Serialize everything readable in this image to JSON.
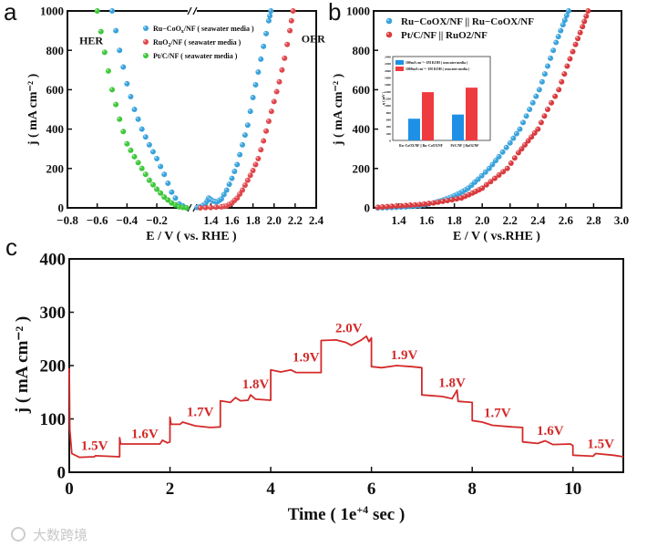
{
  "panels": {
    "a": "a",
    "b": "b",
    "c": "c"
  },
  "watermark": "大数跨境",
  "chart_data": [
    {
      "id": "a",
      "type": "scatter",
      "xlabel": "E / V ( vs. RHE )",
      "ylabel": "j ( mA cm⁻² )",
      "ylim": [
        0,
        1000
      ],
      "xlim_left": [
        -0.8,
        0.02
      ],
      "xlim_right": [
        1.25,
        2.4
      ],
      "axis_break": true,
      "xticks": [
        -0.8,
        -0.6,
        -0.4,
        -0.2,
        1.4,
        1.6,
        1.8,
        2.0,
        2.2,
        2.4
      ],
      "xtick_labels": [
        "−0.8",
        "−0.6",
        "−0.4",
        "−0.2",
        "1.4",
        "1.6",
        "1.8",
        "2.0",
        "2.2",
        "2.4"
      ],
      "yticks": [
        0,
        200,
        400,
        600,
        800,
        1000
      ],
      "annotations": [
        {
          "text": "HER",
          "x": -0.72,
          "y": 830
        },
        {
          "text": "OER",
          "x": 2.26,
          "y": 840
        }
      ],
      "legend_position": "top-center",
      "series": [
        {
          "name": "Ru−CoOx/NF ( seawater media )",
          "name_main": "Ru−CoO",
          "name_sub": "x",
          "name_rest": "/NF ( seawater media )",
          "color": "#3aa3dc",
          "points": [
            [
              0,
              0
            ],
            [
              -0.05,
              20
            ],
            [
              -0.1,
              80
            ],
            [
              -0.15,
              170
            ],
            [
              -0.2,
              250
            ],
            [
              -0.25,
              320
            ],
            [
              -0.3,
              400
            ],
            [
              -0.35,
              500
            ],
            [
              -0.4,
              630
            ],
            [
              -0.45,
              800
            ],
            [
              -0.5,
              1000
            ],
            [
              1.27,
              2
            ],
            [
              1.3,
              5
            ],
            [
              1.35,
              20
            ],
            [
              1.38,
              50
            ],
            [
              1.42,
              35
            ],
            [
              1.46,
              30
            ],
            [
              1.5,
              45
            ],
            [
              1.55,
              90
            ],
            [
              1.6,
              150
            ],
            [
              1.65,
              220
            ],
            [
              1.7,
              320
            ],
            [
              1.75,
              420
            ],
            [
              1.8,
              560
            ],
            [
              1.85,
              690
            ],
            [
              1.9,
              820
            ],
            [
              1.95,
              950
            ],
            [
              1.97,
              1000
            ]
          ]
        },
        {
          "name": "RuO2/NF ( seawater media )",
          "name_main": "RuO",
          "name_sub": "2",
          "name_rest": "/NF ( seawater media )",
          "color": "#e0474c",
          "points": [
            [
              1.3,
              0
            ],
            [
              1.4,
              2
            ],
            [
              1.5,
              5
            ],
            [
              1.55,
              10
            ],
            [
              1.6,
              25
            ],
            [
              1.65,
              50
            ],
            [
              1.7,
              90
            ],
            [
              1.75,
              140
            ],
            [
              1.8,
              190
            ],
            [
              1.85,
              250
            ],
            [
              1.9,
              340
            ],
            [
              1.95,
              440
            ],
            [
              2.0,
              540
            ],
            [
              2.05,
              640
            ],
            [
              2.1,
              760
            ],
            [
              2.15,
              900
            ],
            [
              2.18,
              1000
            ]
          ]
        },
        {
          "name": "Pt/C/NF ( seawater media )",
          "name_main": "Pt/C/NF ( seawater media )",
          "name_sub": "",
          "name_rest": "",
          "color": "#3ec83a",
          "points": [
            [
              0,
              0
            ],
            [
              -0.05,
              5
            ],
            [
              -0.1,
              25
            ],
            [
              -0.15,
              55
            ],
            [
              -0.2,
              95
            ],
            [
              -0.25,
              140
            ],
            [
              -0.3,
              200
            ],
            [
              -0.35,
              260
            ],
            [
              -0.4,
              325
            ],
            [
              -0.45,
              450
            ],
            [
              -0.5,
              600
            ],
            [
              -0.55,
              790
            ],
            [
              -0.6,
              1000
            ]
          ]
        }
      ]
    },
    {
      "id": "b",
      "type": "scatter",
      "xlabel": "E / V ( vs.RHE )",
      "ylabel": "j ( mA cm⁻² )",
      "xlim": [
        1.22,
        3.0
      ],
      "ylim": [
        0,
        1000
      ],
      "xticks": [
        1.4,
        1.6,
        1.8,
        2.0,
        2.2,
        2.4,
        2.6,
        2.8,
        3.0
      ],
      "yticks": [
        0,
        200,
        400,
        600,
        800,
        1000
      ],
      "legend_position": "top-left",
      "series": [
        {
          "name": "Ru−CoOX/NF || Ru−CoOX/NF",
          "color": "#3aa3dc",
          "points": [
            [
              1.25,
              0
            ],
            [
              1.35,
              2
            ],
            [
              1.45,
              5
            ],
            [
              1.55,
              10
            ],
            [
              1.65,
              25
            ],
            [
              1.72,
              40
            ],
            [
              1.78,
              55
            ],
            [
              1.84,
              75
            ],
            [
              1.9,
              100
            ],
            [
              1.97,
              145
            ],
            [
              2.05,
              200
            ],
            [
              2.12,
              260
            ],
            [
              2.2,
              330
            ],
            [
              2.27,
              400
            ],
            [
              2.34,
              500
            ],
            [
              2.41,
              600
            ],
            [
              2.47,
              720
            ],
            [
              2.53,
              840
            ],
            [
              2.58,
              930
            ],
            [
              2.62,
              1000
            ]
          ]
        },
        {
          "name": "Pt/C/NF || RuO2/NF",
          "color": "#d93a3e",
          "points": [
            [
              1.25,
              3
            ],
            [
              1.35,
              8
            ],
            [
              1.45,
              12
            ],
            [
              1.55,
              17
            ],
            [
              1.65,
              25
            ],
            [
              1.75,
              37
            ],
            [
              1.85,
              50
            ],
            [
              1.93,
              75
            ],
            [
              2.0,
              100
            ],
            [
              2.09,
              150
            ],
            [
              2.18,
              200
            ],
            [
              2.26,
              280
            ],
            [
              2.33,
              340
            ],
            [
              2.4,
              400
            ],
            [
              2.47,
              500
            ],
            [
              2.55,
              600
            ],
            [
              2.61,
              720
            ],
            [
              2.67,
              830
            ],
            [
              2.72,
              920
            ],
            [
              2.76,
              1000
            ]
          ]
        }
      ],
      "inset": {
        "type": "bar",
        "ylabel": "η ( mV )",
        "ylim": [
          0,
          2400
        ],
        "yticks": [
          0,
          200,
          400,
          600,
          800,
          1000,
          1200,
          1400,
          1600,
          1800,
          2000,
          2200,
          2400
        ],
        "categories": [
          "Ru−CoOX/NF || Ru−CoOX/NF",
          "Pt/C/NF || RuO2/NF"
        ],
        "series": [
          {
            "name": "100mA cm⁻²−1M KOH ( seawater media )",
            "color": "#1e90e6",
            "values": [
              620,
              740
            ]
          },
          {
            "name": "1000mA cm⁻²−1M KOH ( seawater media )",
            "color": "#ee3b3f",
            "values": [
              1380,
              1510
            ]
          }
        ]
      }
    },
    {
      "id": "c",
      "type": "line",
      "xlabel_main": "Time ( 1e",
      "xlabel_sup": "+4",
      "xlabel_rest": " sec )",
      "ylabel": "j ( mA cm⁻² )",
      "xlim": [
        0,
        11
      ],
      "ylim": [
        0,
        400
      ],
      "xticks": [
        0,
        2,
        4,
        6,
        8,
        10
      ],
      "yticks": [
        0,
        100,
        200,
        300,
        400
      ],
      "color": "#d42a2a",
      "points": [
        [
          0,
          195
        ],
        [
          0.01,
          80
        ],
        [
          0.05,
          35
        ],
        [
          0.2,
          28
        ],
        [
          0.5,
          29
        ],
        [
          0.52,
          31
        ],
        [
          1.0,
          29
        ],
        [
          1.0,
          65
        ],
        [
          1.02,
          53
        ],
        [
          1.8,
          53
        ],
        [
          1.85,
          60
        ],
        [
          1.95,
          55
        ],
        [
          2.0,
          57
        ],
        [
          2.0,
          103
        ],
        [
          2.02,
          90
        ],
        [
          2.2,
          90
        ],
        [
          2.25,
          94
        ],
        [
          2.5,
          87
        ],
        [
          2.8,
          84
        ],
        [
          3.0,
          85
        ],
        [
          3.0,
          134
        ],
        [
          3.2,
          131
        ],
        [
          3.3,
          140
        ],
        [
          3.4,
          134
        ],
        [
          3.55,
          135
        ],
        [
          3.6,
          145
        ],
        [
          3.7,
          137
        ],
        [
          4.0,
          135
        ],
        [
          4.0,
          192
        ],
        [
          4.2,
          188
        ],
        [
          4.4,
          192
        ],
        [
          4.5,
          187
        ],
        [
          5.0,
          187
        ],
        [
          5.0,
          247
        ],
        [
          5.3,
          248
        ],
        [
          5.5,
          243
        ],
        [
          5.6,
          238
        ],
        [
          5.8,
          248
        ],
        [
          5.9,
          255
        ],
        [
          5.95,
          245
        ],
        [
          6.0,
          252
        ],
        [
          6.0,
          198
        ],
        [
          6.2,
          196
        ],
        [
          6.5,
          200
        ],
        [
          6.8,
          198
        ],
        [
          7.0,
          196
        ],
        [
          7.0,
          145
        ],
        [
          7.4,
          142
        ],
        [
          7.6,
          138
        ],
        [
          7.7,
          154
        ],
        [
          7.72,
          133
        ],
        [
          8.0,
          131
        ],
        [
          8.0,
          97
        ],
        [
          8.2,
          94
        ],
        [
          8.4,
          88
        ],
        [
          8.8,
          85
        ],
        [
          9.0,
          84
        ],
        [
          9.0,
          57
        ],
        [
          9.3,
          54
        ],
        [
          9.45,
          59
        ],
        [
          9.6,
          52
        ],
        [
          9.95,
          53
        ],
        [
          10.0,
          50
        ],
        [
          10.0,
          32
        ],
        [
          10.4,
          30
        ],
        [
          10.45,
          35
        ],
        [
          10.8,
          32
        ],
        [
          11.0,
          29
        ]
      ],
      "annotations": [
        {
          "text": "1.5V",
          "x": 0.5,
          "y": 42
        },
        {
          "text": "1.6V",
          "x": 1.5,
          "y": 64
        },
        {
          "text": "1.7V",
          "x": 2.6,
          "y": 105
        },
        {
          "text": "1.8V",
          "x": 3.7,
          "y": 157
        },
        {
          "text": "1.9V",
          "x": 4.7,
          "y": 208
        },
        {
          "text": "2.0V",
          "x": 5.55,
          "y": 262
        },
        {
          "text": "1.9V",
          "x": 6.65,
          "y": 212
        },
        {
          "text": "1.8V",
          "x": 7.6,
          "y": 160
        },
        {
          "text": "1.7V",
          "x": 8.5,
          "y": 103
        },
        {
          "text": "1.6V",
          "x": 9.55,
          "y": 70
        },
        {
          "text": "1.5V",
          "x": 10.55,
          "y": 45
        }
      ]
    }
  ]
}
